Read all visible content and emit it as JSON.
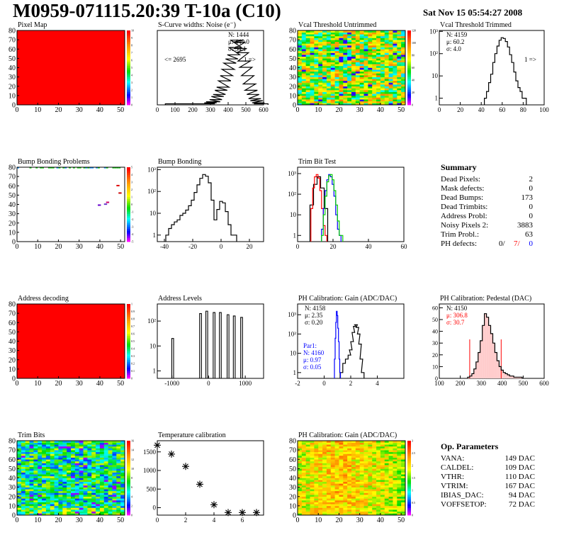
{
  "header": {
    "title": "M0959-071115.20:39 T-10a (C10)",
    "date": "Sat Nov 15 05:54:27 2008"
  },
  "colors": {
    "red": "#ff0000",
    "blue": "#0000ff",
    "green": "#00cc00",
    "black": "#000000"
  },
  "chart_data": [
    {
      "id": "pixel_map",
      "type": "heatmap",
      "title": "Pixel Map",
      "xlim": [
        0,
        52
      ],
      "ylim": [
        0,
        80
      ],
      "xticks": [
        "0",
        "10",
        "20",
        "30",
        "40",
        "50"
      ],
      "yticks": [
        "0",
        "10",
        "20",
        "30",
        "40",
        "50",
        "60",
        "70",
        "80"
      ],
      "fill": "uniform-max",
      "zticks": [
        "0",
        "1",
        "2",
        "3",
        "4",
        "5",
        "6",
        "7",
        "8",
        "9",
        "10"
      ]
    },
    {
      "id": "scurve",
      "type": "histogram",
      "title": "S-Curve widths: Noise (e⁻)",
      "xlim": [
        0,
        600
      ],
      "log": false,
      "xticks": [
        "0",
        "100",
        "200",
        "300",
        "400",
        "500",
        "600"
      ],
      "stats": [
        "N: 1444",
        "μ: 449.0",
        "σ: 54.1"
      ],
      "underflow": "<= 2695",
      "overflow": "1 =>",
      "bins_x": [
        80,
        150,
        290,
        300,
        310,
        320,
        330,
        340,
        350,
        360,
        370,
        380,
        390,
        400,
        410,
        420,
        430,
        440,
        450,
        460,
        470,
        480,
        490,
        500,
        510,
        520,
        530,
        540,
        550,
        560,
        570,
        580,
        590
      ],
      "bins_y": [
        1,
        1,
        1,
        2,
        3,
        3,
        5,
        8,
        10,
        14,
        17,
        23,
        28,
        34,
        40,
        44,
        48,
        55,
        62,
        60,
        54,
        50,
        42,
        36,
        28,
        20,
        14,
        10,
        6,
        4,
        2,
        1,
        1
      ]
    },
    {
      "id": "vcal_untrimmed",
      "type": "heatmap",
      "title": "Vcal Threshold Untrimmed",
      "xlim": [
        0,
        52
      ],
      "ylim": [
        0,
        80
      ],
      "xticks": [
        "0",
        "10",
        "20",
        "30",
        "40",
        "50"
      ],
      "yticks": [
        "0",
        "10",
        "20",
        "30",
        "40",
        "50",
        "60",
        "70",
        "80"
      ],
      "zticks": [
        "0",
        "20",
        "40",
        "60",
        "80",
        "100",
        "120"
      ],
      "fill": "noisy-mid"
    },
    {
      "id": "vcal_trimmed",
      "type": "histogram",
      "title": "Vcal Threshold Trimmed",
      "xlim": [
        0,
        100
      ],
      "log": true,
      "xticks": [
        "0",
        "20",
        "40",
        "60",
        "80",
        "100"
      ],
      "yticks": [
        "1",
        "10",
        "10²",
        "10³"
      ],
      "stats": [
        "N: 4159",
        "μ: 60.2",
        "σ:  4.0"
      ],
      "overflow": "1 =>",
      "bins_x": [
        44,
        46,
        48,
        50,
        52,
        54,
        56,
        58,
        60,
        62,
        64,
        66,
        68,
        70,
        72,
        74,
        76,
        78,
        80,
        82
      ],
      "bins_y": [
        1,
        2,
        5,
        12,
        40,
        100,
        220,
        400,
        520,
        480,
        350,
        200,
        90,
        40,
        15,
        6,
        3,
        2,
        1,
        1
      ]
    },
    {
      "id": "bump_problems",
      "type": "heatmap",
      "title": "Bump Bonding Problems",
      "xlim": [
        0,
        52
      ],
      "ylim": [
        0,
        80
      ],
      "xticks": [
        "0",
        "10",
        "20",
        "30",
        "40",
        "50"
      ],
      "yticks": [
        "0",
        "10",
        "20",
        "30",
        "40",
        "50",
        "60",
        "70",
        "80"
      ],
      "zticks": [
        "-5",
        "-4",
        "-3",
        "-2",
        "-1",
        "0",
        "1",
        "2",
        "3",
        "4",
        "5"
      ],
      "fill": "sparse"
    },
    {
      "id": "bump_bonding",
      "type": "histogram",
      "title": "Bump Bonding",
      "xlim": [
        -45,
        30
      ],
      "log": true,
      "xticks": [
        "-40",
        "-20",
        "0",
        "20"
      ],
      "yticks": [
        "1",
        "10",
        "10²",
        "10³"
      ],
      "bins_x": [
        -38,
        -36,
        -34,
        -32,
        -30,
        -28,
        -26,
        -24,
        -22,
        -20,
        -18,
        -16,
        -14,
        -12,
        -10,
        -8,
        -6,
        -4,
        -2,
        0,
        2,
        4,
        6,
        8,
        10
      ],
      "bins_y": [
        1,
        2,
        3,
        4,
        5,
        8,
        10,
        14,
        22,
        40,
        90,
        200,
        400,
        600,
        500,
        250,
        40,
        5,
        15,
        35,
        30,
        12,
        3,
        1,
        1
      ]
    },
    {
      "id": "trim_bit_test",
      "type": "histogram",
      "title": "Trim Bit Test",
      "xlim": [
        0,
        60
      ],
      "log": true,
      "xticks": [
        "0",
        "20",
        "40",
        "60"
      ],
      "yticks": [
        "1",
        "10",
        "10²",
        "10³"
      ],
      "series": [
        {
          "name": "black",
          "color": "#000000",
          "bins_x": [
            8,
            10,
            12,
            14,
            16
          ],
          "bins_y": [
            30,
            300,
            700,
            200,
            20
          ]
        },
        {
          "name": "red",
          "color": "#ff0000",
          "bins_x": [
            8,
            9,
            10,
            11,
            12,
            13,
            14,
            15,
            16
          ],
          "bins_y": [
            20,
            200,
            700,
            900,
            600,
            150,
            20,
            3,
            1
          ]
        },
        {
          "name": "blue",
          "color": "#0000ff",
          "bins_x": [
            14,
            15,
            16,
            17,
            18,
            19,
            20,
            21,
            22,
            23,
            24
          ],
          "bins_y": [
            2,
            20,
            150,
            500,
            900,
            700,
            300,
            80,
            10,
            2,
            1
          ]
        },
        {
          "name": "green",
          "color": "#00cc00",
          "bins_x": [
            14,
            15,
            16,
            17,
            18,
            19,
            20,
            21,
            22,
            23,
            24,
            25
          ],
          "bins_y": [
            1,
            10,
            80,
            400,
            800,
            900,
            500,
            150,
            30,
            5,
            1,
            1
          ]
        }
      ]
    },
    {
      "id": "address_decoding",
      "type": "heatmap",
      "title": "Address decoding",
      "xlim": [
        0,
        52
      ],
      "ylim": [
        0,
        80
      ],
      "xticks": [
        "0",
        "10",
        "20",
        "30",
        "40",
        "50"
      ],
      "yticks": [
        "0",
        "10",
        "20",
        "30",
        "40",
        "50",
        "60",
        "70",
        "80"
      ],
      "zticks": [
        "0",
        "0.1",
        "0.2",
        "0.3",
        "0.4",
        "0.5",
        "0.6",
        "0.7",
        "0.8",
        "0.9",
        "1"
      ],
      "fill": "uniform-max"
    },
    {
      "id": "address_levels",
      "type": "histogram",
      "title": "Address Levels",
      "xlim": [
        -1400,
        1500
      ],
      "log": true,
      "xticks": [
        "-1000",
        "0",
        "1000"
      ],
      "yticks": [
        "1",
        "10",
        "10²"
      ],
      "peaks": [
        -980,
        -220,
        -50,
        150,
        320,
        530,
        700,
        900
      ],
      "peak_heights": [
        20,
        200,
        250,
        220,
        220,
        180,
        160,
        140
      ]
    },
    {
      "id": "ph_gain",
      "type": "histogram",
      "title": "PH Calibration: Gain (ADC/DAC)",
      "xlim": [
        -2,
        6
      ],
      "log": true,
      "xticks": [
        "-2",
        "0",
        "2",
        "4"
      ],
      "yticks": [
        "1",
        "10",
        "10²",
        "10³"
      ],
      "stats": [
        "N: 4158",
        "μ: 2.35",
        "σ: 0.20"
      ],
      "stats2": [
        "Par1:",
        "N: 4160",
        "μ: 0.97",
        "σ: 0.05"
      ],
      "series": [
        {
          "name": "Gain",
          "color": "#000000",
          "bins_x": [
            1.3,
            1.5,
            1.7,
            1.9,
            2.0,
            2.1,
            2.2,
            2.3,
            2.4,
            2.5,
            2.6,
            2.7,
            2.8,
            2.9
          ],
          "bins_y": [
            1,
            3,
            5,
            8,
            15,
            40,
            120,
            250,
            300,
            220,
            100,
            30,
            5,
            1
          ]
        },
        {
          "name": "Par1",
          "color": "#0000ff",
          "bins_x": [
            0.8,
            0.85,
            0.9,
            0.95,
            1.0,
            1.05,
            1.1,
            1.15,
            1.2
          ],
          "bins_y": [
            5,
            60,
            400,
            1500,
            900,
            200,
            40,
            5,
            1
          ]
        }
      ]
    },
    {
      "id": "ph_pedestal",
      "type": "histogram",
      "title": "PH Calibration: Pedestal (DAC)",
      "xlim": [
        100,
        600
      ],
      "log": false,
      "xticks": [
        "100",
        "200",
        "300",
        "400",
        "500",
        "600"
      ],
      "yticks": [
        "0",
        "10",
        "20",
        "30",
        "40",
        "50",
        "60"
      ],
      "stats": [
        "N: 4150",
        "μ: 306.8",
        "σ: 30.7"
      ],
      "redlines": [
        245,
        395
      ],
      "bins_x": [
        240,
        250,
        260,
        270,
        280,
        290,
        300,
        310,
        320,
        330,
        340,
        350,
        360,
        370,
        380,
        390,
        400,
        410,
        420,
        430,
        440,
        450,
        460,
        470,
        480,
        490
      ],
      "bins_y": [
        1,
        2,
        4,
        8,
        14,
        22,
        32,
        45,
        55,
        52,
        45,
        38,
        30,
        22,
        15,
        10,
        7,
        5,
        4,
        3,
        2,
        2,
        1,
        1,
        1,
        1
      ]
    },
    {
      "id": "trim_bits",
      "type": "heatmap",
      "title": "Trim Bits",
      "xlim": [
        0,
        52
      ],
      "ylim": [
        0,
        80
      ],
      "xticks": [
        "0",
        "10",
        "20",
        "30",
        "40",
        "50"
      ],
      "yticks": [
        "0",
        "10",
        "20",
        "30",
        "40",
        "50",
        "60",
        "70",
        "80"
      ],
      "zticks": [
        "0",
        "2",
        "4",
        "6",
        "8",
        "10",
        "12",
        "14",
        "16"
      ],
      "fill": "noisy-low"
    },
    {
      "id": "temperature",
      "type": "scatter",
      "title": "Temperature calibration",
      "xlim": [
        0,
        7.5
      ],
      "ylim": [
        -200,
        1800
      ],
      "xticks": [
        "0",
        "2",
        "4",
        "6"
      ],
      "yticks": [
        "0",
        "500",
        "1000",
        "1500"
      ],
      "x": [
        0,
        1,
        2,
        3,
        4,
        5,
        6,
        7
      ],
      "y": [
        1680,
        1440,
        1110,
        630,
        80,
        -130,
        -130,
        -130
      ]
    },
    {
      "id": "ph_gain_map",
      "type": "heatmap",
      "title": "PH Calibration: Gain (ADC/DAC)",
      "xlim": [
        0,
        52
      ],
      "ylim": [
        0,
        80
      ],
      "xticks": [
        "0",
        "10",
        "20",
        "30",
        "40",
        "50"
      ],
      "yticks": [
        "0",
        "10",
        "20",
        "30",
        "40",
        "50",
        "60",
        "70",
        "80"
      ],
      "zticks": [
        "0",
        "0.5",
        "1",
        "1.5",
        "2",
        "2.5",
        "3"
      ],
      "fill": "noisy-high"
    }
  ],
  "summary": {
    "title": "Summary",
    "rows": [
      {
        "label": "Dead Pixels:",
        "value": "2"
      },
      {
        "label": "Mask defects:",
        "value": "0"
      },
      {
        "label": "Dead Bumps:",
        "value": "173"
      },
      {
        "label": "Dead Trimbits:",
        "value": "0"
      },
      {
        "label": "Address Probl:",
        "value": "0"
      },
      {
        "label": "Noisy Pixels 2:",
        "value": "3883"
      },
      {
        "label": "Trim Probl.:",
        "value": "63"
      }
    ],
    "ph_label": "PH defects:",
    "ph_values": [
      "0/",
      "7/",
      "0"
    ]
  },
  "op_params": {
    "title": "Op. Parameters",
    "rows": [
      {
        "label": "VANA:",
        "value": "149 DAC"
      },
      {
        "label": "CALDEL:",
        "value": "109 DAC"
      },
      {
        "label": "VTHR:",
        "value": "110 DAC"
      },
      {
        "label": "VTRIM:",
        "value": "167 DAC"
      },
      {
        "label": "IBIAS_DAC:",
        "value": "94 DAC"
      },
      {
        "label": "VOFFSETOP:",
        "value": "72 DAC"
      }
    ]
  }
}
